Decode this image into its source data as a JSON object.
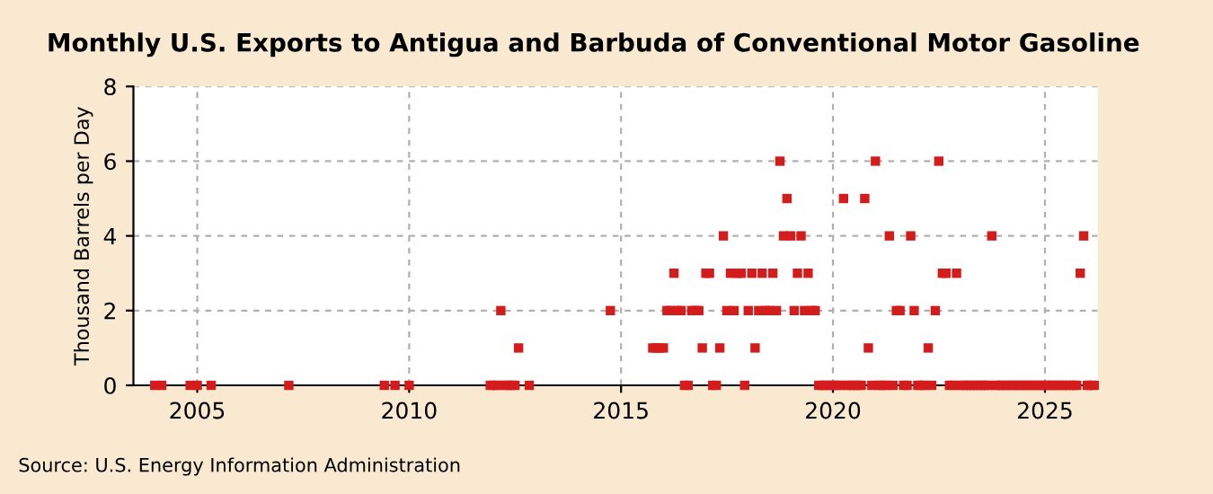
{
  "chart_data": {
    "type": "scatter",
    "title": "Monthly U.S. Exports to Antigua and Barbuda of Conventional Motor Gasoline",
    "ylabel": "Thousand Barrels per Day",
    "annotations": [
      "Source: U.S. Energy Information Administration"
    ],
    "marker": "square",
    "grid": true,
    "xlim": [
      "2003-07",
      "2026-04"
    ],
    "xticks": [
      "2005",
      "2010",
      "2015",
      "2020",
      "2025"
    ],
    "ylim": [
      0,
      8
    ],
    "yticks": [
      0,
      2,
      4,
      6,
      8
    ],
    "series": [
      {
        "color": "#d41c1c",
        "x": [
          "2004-01",
          "2004-03",
          "2004-11",
          "2005-01",
          "2005-05",
          "2007-03",
          "2009-06",
          "2009-09",
          "2010-01",
          "2011-12",
          "2012-01",
          "2012-02",
          "2012-03",
          "2012-04",
          "2012-05",
          "2012-06",
          "2012-07",
          "2012-08",
          "2012-11",
          "2014-10",
          "2015-10",
          "2015-11",
          "2015-12",
          "2016-01",
          "2016-02",
          "2016-03",
          "2016-04",
          "2016-05",
          "2016-06",
          "2016-07",
          "2016-08",
          "2016-09",
          "2016-10",
          "2016-11",
          "2016-12",
          "2017-01",
          "2017-02",
          "2017-03",
          "2017-04",
          "2017-05",
          "2017-06",
          "2017-07",
          "2017-08",
          "2017-09",
          "2017-10",
          "2017-11",
          "2017-12",
          "2018-01",
          "2018-02",
          "2018-03",
          "2018-04",
          "2018-05",
          "2018-06",
          "2018-07",
          "2018-08",
          "2018-09",
          "2018-10",
          "2018-11",
          "2018-12",
          "2019-01",
          "2019-02",
          "2019-03",
          "2019-04",
          "2019-05",
          "2019-06",
          "2019-07",
          "2019-08",
          "2019-09",
          "2019-10",
          "2019-11",
          "2019-12",
          "2020-01",
          "2020-02",
          "2020-03",
          "2020-04",
          "2020-05",
          "2020-06",
          "2020-07",
          "2020-08",
          "2020-09",
          "2020-10",
          "2020-11",
          "2020-12",
          "2021-01",
          "2021-02",
          "2021-03",
          "2021-04",
          "2021-05",
          "2021-06",
          "2021-07",
          "2021-08",
          "2021-09",
          "2021-10",
          "2021-11",
          "2021-12",
          "2022-01",
          "2022-02",
          "2022-03",
          "2022-04",
          "2022-05",
          "2022-06",
          "2022-07",
          "2022-08",
          "2022-09",
          "2022-10",
          "2022-11",
          "2022-12",
          "2023-01",
          "2023-02",
          "2023-03",
          "2023-04",
          "2023-05",
          "2023-06",
          "2023-07",
          "2023-08",
          "2023-09",
          "2023-10",
          "2023-11",
          "2023-12",
          "2024-01",
          "2024-02",
          "2024-03",
          "2024-04",
          "2024-05",
          "2024-06",
          "2024-07",
          "2024-08",
          "2024-09",
          "2024-10",
          "2024-11",
          "2024-12",
          "2025-01",
          "2025-02",
          "2025-03",
          "2025-04",
          "2025-05",
          "2025-06",
          "2025-07",
          "2025-08",
          "2025-09",
          "2025-10",
          "2025-11",
          "2025-12",
          "2026-01",
          "2026-02",
          "2026-03"
        ],
        "values": [
          0,
          0,
          0,
          0,
          0,
          0,
          0,
          0,
          0,
          0,
          0,
          0,
          2,
          0,
          0,
          0,
          0,
          1,
          0,
          2,
          1,
          1,
          1,
          1,
          2,
          2,
          3,
          2,
          2,
          0,
          0,
          2,
          2,
          2,
          1,
          3,
          3,
          0,
          0,
          1,
          4,
          2,
          3,
          2,
          3,
          3,
          0,
          2,
          3,
          1,
          2,
          3,
          2,
          2,
          3,
          2,
          6,
          4,
          5,
          4,
          2,
          3,
          4,
          2,
          3,
          2,
          2,
          0,
          0,
          0,
          0,
          0,
          0,
          0,
          5,
          0,
          0,
          0,
          0,
          0,
          5,
          1,
          0,
          6,
          0,
          0,
          0,
          4,
          0,
          2,
          2,
          0,
          0,
          4,
          2,
          0,
          0,
          0,
          1,
          0,
          2,
          6,
          3,
          3,
          0,
          0,
          3,
          0,
          0,
          0,
          0,
          0,
          0,
          0,
          0,
          0,
          4,
          0,
          0,
          0,
          0,
          0,
          0,
          0,
          0,
          0,
          0,
          0,
          0,
          0,
          0,
          0,
          0,
          0,
          0,
          0,
          0,
          0,
          0,
          0,
          0,
          3,
          4,
          0,
          0,
          0
        ]
      }
    ]
  }
}
